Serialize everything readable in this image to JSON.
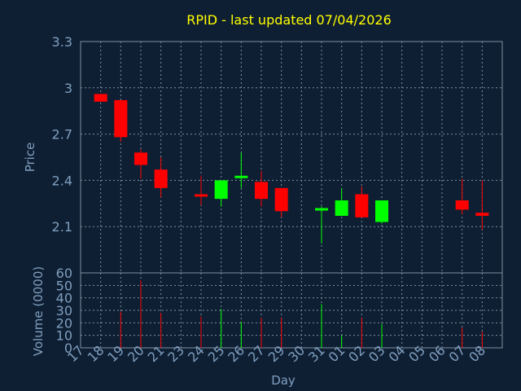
{
  "colors": {
    "background": "#0f1f33",
    "title": "#ffff00",
    "axis_text": "#7f9fbf",
    "grid": "#7f8fa0",
    "up": "#00ff00",
    "down": "#ff0000"
  },
  "chart_data": [
    {
      "type": "candlestick",
      "title": "RPID - last updated 07/04/2026",
      "ylabel": "Price",
      "ylim": [
        1.8,
        3.3
      ],
      "yticks": [
        2.1,
        2.4,
        2.7,
        3,
        3.3
      ],
      "ytick_labels": [
        "2.1",
        "2.4",
        "2.7",
        "3",
        "3.3"
      ],
      "grid": true,
      "x_categories": [
        "17",
        "18",
        "19",
        "20",
        "21",
        "23",
        "24",
        "25",
        "26",
        "27",
        "29",
        "30",
        "31",
        "01",
        "02",
        "03",
        "04",
        "05",
        "06",
        "07",
        "08"
      ],
      "candles": [
        {
          "day": "17",
          "open": 2.96,
          "high": 2.96,
          "low": 2.91,
          "close": 2.91,
          "dir": "down"
        },
        {
          "day": "18",
          "open": 2.92,
          "high": 2.92,
          "low": 2.65,
          "close": 2.68,
          "dir": "down"
        },
        {
          "day": "19",
          "open": 2.58,
          "high": 2.6,
          "low": 2.41,
          "close": 2.5,
          "dir": "down"
        },
        {
          "day": "20",
          "open": 2.47,
          "high": 2.55,
          "low": 2.29,
          "close": 2.35,
          "dir": "down"
        },
        {
          "day": "23",
          "open": 2.31,
          "high": 2.43,
          "low": 2.24,
          "close": 2.3,
          "dir": "down"
        },
        {
          "day": "24",
          "open": 2.28,
          "high": 2.4,
          "low": 2.23,
          "close": 2.4,
          "dir": "up"
        },
        {
          "day": "25",
          "open": 2.42,
          "high": 2.58,
          "low": 2.35,
          "close": 2.43,
          "dir": "up"
        },
        {
          "day": "26",
          "open": 2.39,
          "high": 2.46,
          "low": 2.23,
          "close": 2.28,
          "dir": "down"
        },
        {
          "day": "27",
          "open": 2.35,
          "high": 2.35,
          "low": 2.16,
          "close": 2.2,
          "dir": "down"
        },
        {
          "day": "30",
          "open": 2.21,
          "high": 2.23,
          "low": 1.99,
          "close": 2.22,
          "dir": "up"
        },
        {
          "day": "31",
          "open": 2.17,
          "high": 2.35,
          "low": 2.17,
          "close": 2.27,
          "dir": "up"
        },
        {
          "day": "01",
          "open": 2.31,
          "high": 2.36,
          "low": 2.16,
          "close": 2.16,
          "dir": "down"
        },
        {
          "day": "02",
          "open": 2.13,
          "high": 2.27,
          "low": 2.12,
          "close": 2.27,
          "dir": "up"
        },
        {
          "day": "06",
          "open": 2.27,
          "high": 2.41,
          "low": 2.18,
          "close": 2.21,
          "dir": "down"
        },
        {
          "day": "07",
          "open": 2.19,
          "high": 2.4,
          "low": 2.08,
          "close": 2.17,
          "dir": "down"
        }
      ]
    },
    {
      "type": "bar",
      "ylabel": "Volume (0000)",
      "xlabel": "Day",
      "ylim": [
        0,
        60
      ],
      "yticks": [
        0,
        10,
        20,
        30,
        40,
        50,
        60
      ],
      "ytick_labels": [
        "0",
        "10",
        "20",
        "30",
        "40",
        "50",
        "60"
      ],
      "x_tick_labels": [
        "17",
        "18",
        "19",
        "20",
        "21",
        "23",
        "24",
        "25",
        "26",
        "27",
        "29",
        "30",
        "31",
        "01",
        "02",
        "03",
        "04",
        "05",
        "06",
        "07",
        "08"
      ],
      "bars": [
        {
          "day": "18",
          "value": 29,
          "dir": "down"
        },
        {
          "day": "19",
          "value": 54,
          "dir": "down"
        },
        {
          "day": "20",
          "value": 28,
          "dir": "down"
        },
        {
          "day": "23",
          "value": 25,
          "dir": "down"
        },
        {
          "day": "24",
          "value": 31,
          "dir": "up"
        },
        {
          "day": "25",
          "value": 21,
          "dir": "up"
        },
        {
          "day": "26",
          "value": 24,
          "dir": "down"
        },
        {
          "day": "27",
          "value": 24,
          "dir": "down"
        },
        {
          "day": "30",
          "value": 35,
          "dir": "up"
        },
        {
          "day": "31",
          "value": 10,
          "dir": "up"
        },
        {
          "day": "01",
          "value": 24,
          "dir": "down"
        },
        {
          "day": "02",
          "value": 19,
          "dir": "up"
        },
        {
          "day": "06",
          "value": 16,
          "dir": "down"
        },
        {
          "day": "07",
          "value": 13,
          "dir": "down"
        }
      ]
    }
  ]
}
